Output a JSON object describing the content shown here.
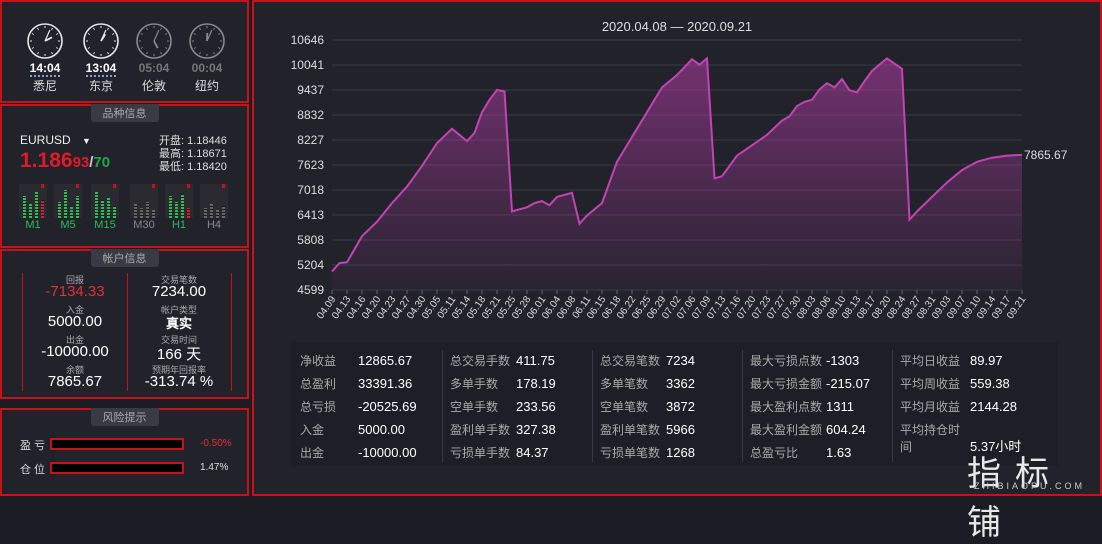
{
  "clocks": [
    {
      "time": "14:04",
      "city": "悉尼",
      "h": 2,
      "m": 4,
      "active": true
    },
    {
      "time": "13:04",
      "city": "东京",
      "h": 1,
      "m": 4,
      "active": true
    },
    {
      "time": "05:04",
      "city": "伦敦",
      "h": 5,
      "m": 4,
      "active": false
    },
    {
      "time": "00:04",
      "city": "纽约",
      "h": 0,
      "m": 4,
      "active": false
    }
  ],
  "symbol": {
    "title": "品种信息",
    "name": "EURUSD",
    "price_big": "1.186",
    "price_mid": "93",
    "price_slash": "/",
    "price_small": "70",
    "open": "开盘: 1.18446",
    "high": "最高: 1.18671",
    "low": "最低: 1.18420",
    "timeframes": [
      "M1",
      "M5",
      "M15",
      "M30",
      "H1",
      "H4"
    ]
  },
  "account": {
    "title": "帐户信息",
    "items": [
      {
        "label": "回报",
        "value": "-7134.33",
        "red": true
      },
      {
        "label": "交易笔数",
        "value": "7234.00",
        "red": false
      },
      {
        "label": "入金",
        "value": "5000.00",
        "red": false
      },
      {
        "label": "帐户类型",
        "value": "真实",
        "red": false
      },
      {
        "label": "出金",
        "value": "-10000.00",
        "red": false
      },
      {
        "label": "交易时间",
        "value": "166 天",
        "red": false
      },
      {
        "label": "余额",
        "value": "7865.67",
        "red": false
      },
      {
        "label": "预期年回报率",
        "value": "-313.74 %",
        "red": false
      }
    ]
  },
  "risk": {
    "title": "风险提示",
    "rows": [
      {
        "label": "盈 亏",
        "value": "-0.50%",
        "color": "#e0303a"
      },
      {
        "label": "仓 位",
        "value": "1.47%",
        "color": "#dddddd"
      }
    ]
  },
  "chart_data": {
    "type": "area",
    "title": "2020.04.08 — 2020.09.21",
    "y_ticks": [
      "10646",
      "10041",
      "9437",
      "8832",
      "8227",
      "7623",
      "7018",
      "6413",
      "5808",
      "5204",
      "4599"
    ],
    "ylim": [
      4599,
      10646
    ],
    "x_labels": [
      "04.09",
      "04.13",
      "04.16",
      "04.20",
      "04.23",
      "04.27",
      "04.30",
      "05.05",
      "05.11",
      "05.14",
      "05.18",
      "05.21",
      "05.25",
      "05.28",
      "06.01",
      "06.04",
      "06.08",
      "06.11",
      "06.15",
      "06.18",
      "06.22",
      "06.25",
      "06.29",
      "07.02",
      "07.06",
      "07.09",
      "07.13",
      "07.16",
      "07.20",
      "07.23",
      "07.27",
      "07.30",
      "08.03",
      "08.06",
      "08.10",
      "08.13",
      "08.17",
      "08.20",
      "08.24",
      "08.27",
      "08.31",
      "09.03",
      "09.07",
      "09.10",
      "09.14",
      "09.17",
      "09.21"
    ],
    "last_value": "7865.67",
    "color": "#b53ea8",
    "x": [
      0,
      0.5,
      1,
      2,
      3,
      4,
      5,
      6,
      7,
      8,
      9,
      9.5,
      10,
      10.5,
      11,
      11.5,
      12,
      12.5,
      13,
      13.5,
      14,
      14.5,
      15,
      16,
      16.5,
      17,
      18,
      19,
      20,
      21,
      22,
      23,
      24,
      24.5,
      25,
      25.5,
      26,
      26.5,
      27,
      28,
      29,
      30,
      30.5,
      31,
      31.5,
      32,
      32.5,
      33,
      33.5,
      34,
      34.5,
      35,
      35.5,
      36,
      37,
      38,
      38.5,
      39,
      40,
      41,
      42,
      43,
      44,
      45,
      46
    ],
    "y": [
      5050,
      5250,
      5270,
      5900,
      6250,
      6700,
      7100,
      7600,
      8150,
      8500,
      8200,
      8400,
      8900,
      9200,
      9440,
      9400,
      6500,
      6550,
      6600,
      6700,
      6750,
      6650,
      6850,
      6950,
      6200,
      6400,
      6700,
      7700,
      8300,
      8900,
      9500,
      9800,
      10180,
      10050,
      10200,
      7300,
      7350,
      7600,
      7850,
      8100,
      8350,
      8700,
      8800,
      9050,
      9150,
      9200,
      9450,
      9600,
      9500,
      9700,
      9430,
      9380,
      9650,
      9900,
      10200,
      9950,
      6300,
      6500,
      6850,
      7200,
      7500,
      7700,
      7800,
      7850,
      7865.67
    ]
  },
  "stats": [
    [
      [
        "净收益",
        "12865.67"
      ],
      [
        "总盈利",
        "33391.36"
      ],
      [
        "总亏损",
        "-20525.69"
      ],
      [
        "入金",
        "5000.00"
      ],
      [
        "出金",
        "-10000.00"
      ]
    ],
    [
      [
        "总交易手数",
        "411.75"
      ],
      [
        "多单手数",
        "178.19"
      ],
      [
        "空单手数",
        "233.56"
      ],
      [
        "盈利单手数",
        "327.38"
      ],
      [
        "亏损单手数",
        "84.37"
      ]
    ],
    [
      [
        "总交易笔数",
        "7234"
      ],
      [
        "多单笔数",
        "3362"
      ],
      [
        "空单笔数",
        "3872"
      ],
      [
        "盈利单笔数",
        "5966"
      ],
      [
        "亏损单笔数",
        "1268"
      ]
    ],
    [
      [
        "最大亏损点数",
        "-1303"
      ],
      [
        "最大亏损金额",
        "-215.07"
      ],
      [
        "最大盈利点数",
        "1311"
      ],
      [
        "最大盈利金额",
        "604.24"
      ],
      [
        "总盈亏比",
        "1.63"
      ]
    ],
    [
      [
        "平均日收益",
        "89.97"
      ],
      [
        "平均周收益",
        "559.38"
      ],
      [
        "平均月收益",
        "2144.28"
      ],
      [
        "平均持仓时间",
        "5.37小时"
      ]
    ]
  ],
  "watermark": {
    "main": "指标铺",
    "sub": "ZHIBIAOPU.COM"
  }
}
